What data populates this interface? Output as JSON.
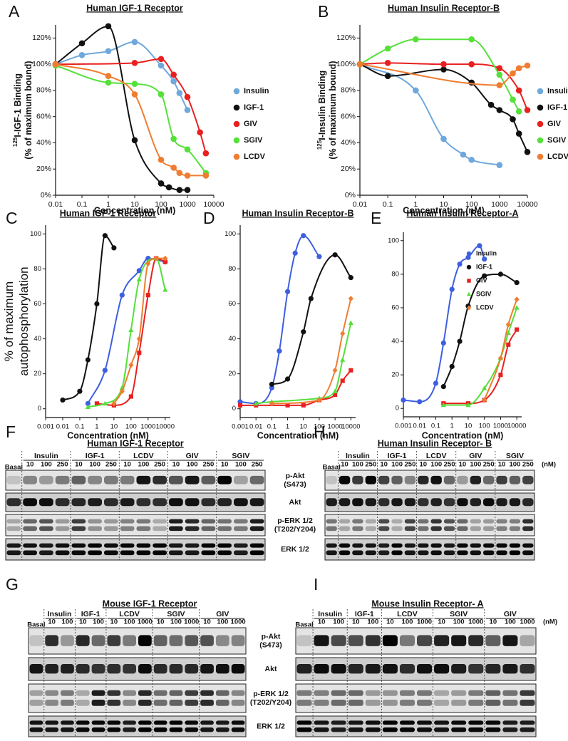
{
  "chart_data": [
    {
      "panel": "A",
      "type": "scatter",
      "fit": true,
      "title": "Human IGF-1 Receptor",
      "x_label": "Concentration (nM)",
      "y_label_sup": "125",
      "y_label": [
        "I-IGF-1 Binding",
        "(% of maximum bound)"
      ],
      "log_x": true,
      "xlim": [
        0.01,
        10000
      ],
      "xticks": [
        0.01,
        0.1,
        1,
        10,
        100,
        1000,
        10000
      ],
      "ylim": [
        0,
        130
      ],
      "yticks": [
        {
          "value": 0,
          "label": "0%"
        },
        {
          "value": 20,
          "label": "20%"
        },
        {
          "value": 40,
          "label": "40%"
        },
        {
          "value": 60,
          "label": "60%"
        },
        {
          "value": 80,
          "label": "80%"
        },
        {
          "value": 100,
          "label": "100%"
        },
        {
          "value": 120,
          "label": "120%"
        }
      ],
      "legend": "right",
      "series": [
        {
          "name": "Insulin",
          "color": "#6fa8dc",
          "marker": "circle",
          "x": [
            0.01,
            0.1,
            1,
            10,
            100,
            300,
            500,
            1000
          ],
          "values": [
            100,
            107,
            110,
            117,
            99,
            87,
            78,
            65
          ]
        },
        {
          "name": "IGF-1",
          "color": "#111111",
          "marker": "circle",
          "x": [
            0.01,
            0.1,
            1,
            10,
            100,
            200,
            500,
            1000
          ],
          "values": [
            100,
            116,
            129,
            42,
            9,
            6,
            4,
            4
          ]
        },
        {
          "name": "GIV",
          "color": "#e8201f",
          "marker": "circle",
          "x": [
            0.01,
            10,
            100,
            300,
            1000,
            3000,
            5000
          ],
          "values": [
            100,
            101,
            104,
            92,
            75,
            48,
            32
          ]
        },
        {
          "name": "SGIV",
          "color": "#55e03a",
          "marker": "circle",
          "x": [
            0.01,
            1,
            10,
            100,
            300,
            1000,
            5000
          ],
          "values": [
            99,
            86,
            85,
            77,
            43,
            35,
            17
          ]
        },
        {
          "name": "LCDV",
          "color": "#ef7d31",
          "marker": "circle",
          "x": [
            0.01,
            1,
            10,
            100,
            300,
            500,
            1000,
            5000
          ],
          "values": [
            100,
            91,
            77,
            27,
            21,
            17,
            15,
            15
          ]
        }
      ]
    },
    {
      "panel": "B",
      "type": "scatter",
      "fit": true,
      "title": "Human Insulin Receptor-B",
      "x_label": "Concentration (nM)",
      "y_label_sup": "125",
      "y_label": [
        "I-Insulin Binding",
        "(% of maximum bound)"
      ],
      "log_x": true,
      "xlim": [
        0.01,
        10000
      ],
      "xticks": [
        0.01,
        0.1,
        1,
        10,
        100,
        1000,
        10000
      ],
      "ylim": [
        0,
        130
      ],
      "yticks": [
        {
          "value": 0,
          "label": "0%"
        },
        {
          "value": 20,
          "label": "20%"
        },
        {
          "value": 40,
          "label": "40%"
        },
        {
          "value": 60,
          "label": "60%"
        },
        {
          "value": 80,
          "label": "80%"
        },
        {
          "value": 100,
          "label": "100%"
        },
        {
          "value": 120,
          "label": "120%"
        }
      ],
      "legend": "right",
      "series": [
        {
          "name": "Insulin",
          "color": "#6fa8dc",
          "marker": "circle",
          "x": [
            0.01,
            1,
            10,
            50,
            100,
            1000
          ],
          "values": [
            100,
            80,
            43,
            31,
            27,
            23
          ]
        },
        {
          "name": "IGF-1",
          "color": "#111111",
          "marker": "circle",
          "x": [
            0.01,
            0.1,
            10,
            100,
            500,
            1000,
            3000,
            5000,
            10000
          ],
          "values": [
            100,
            91,
            96,
            86,
            69,
            65,
            58,
            47,
            33
          ]
        },
        {
          "name": "GIV",
          "color": "#e8201f",
          "marker": "circle",
          "x": [
            0.01,
            0.1,
            10,
            100,
            1000,
            5000,
            10000
          ],
          "values": [
            100,
            101,
            100,
            100,
            97,
            80,
            65
          ]
        },
        {
          "name": "SGIV",
          "color": "#55e03a",
          "marker": "circle",
          "x": [
            0.01,
            0.1,
            1,
            100,
            1000,
            3000,
            5000
          ],
          "values": [
            100,
            112,
            119,
            119,
            92,
            73,
            64
          ]
        },
        {
          "name": "LCDV",
          "color": "#ef7d31",
          "marker": "circle",
          "x": [
            0.01,
            1000,
            3000,
            5000,
            10000
          ],
          "values": [
            100,
            84,
            93,
            97,
            99
          ]
        }
      ]
    },
    {
      "panel": "C",
      "type": "scatter",
      "fit": true,
      "title": "Human IGF-1 Receptor",
      "x_label": "Concentration (nM)",
      "y_label": [
        "% of maximum",
        "autophosphorylation"
      ],
      "log_x": true,
      "xlim": [
        0.001,
        20000
      ],
      "xticks": [
        0.001,
        0.01,
        0.1,
        1,
        10,
        100,
        1000,
        10000
      ],
      "ylim": [
        -5,
        105
      ],
      "yticks": [
        0,
        20,
        40,
        60,
        80,
        100
      ],
      "series": [
        {
          "name": "Insulin",
          "color": "#3d5fe0",
          "marker": "circle",
          "x": [
            0.3,
            3,
            30,
            300,
            1000,
            10000
          ],
          "values": [
            3,
            22,
            65,
            79,
            86,
            84
          ]
        },
        {
          "name": "IGF-1",
          "color": "#111111",
          "marker": "circle",
          "x": [
            0.01,
            0.1,
            0.3,
            1,
            3,
            10
          ],
          "values": [
            5,
            10,
            28,
            60,
            99,
            92
          ]
        },
        {
          "name": "GIV",
          "color": "#e8201f",
          "marker": "square",
          "x": [
            1,
            10,
            100,
            300,
            1000,
            3000,
            10000
          ],
          "values": [
            3,
            2,
            7,
            32,
            65,
            86,
            84
          ]
        },
        {
          "name": "SGIV",
          "color": "#55e03a",
          "marker": "triangle",
          "x": [
            0.3,
            3,
            30,
            100,
            300,
            3000,
            10000
          ],
          "values": [
            1,
            3,
            12,
            45,
            74,
            86,
            68
          ]
        },
        {
          "name": "LCDV",
          "color": "#ef7d31",
          "marker": "diamond",
          "x": [
            10,
            30,
            100,
            300,
            1000,
            3000,
            10000
          ],
          "values": [
            3,
            10,
            25,
            40,
            83,
            86,
            86
          ]
        }
      ]
    },
    {
      "panel": "D",
      "type": "scatter",
      "fit": true,
      "title": "Human Insulin Receptor-B",
      "x_label": "Concentration (nM)",
      "log_x": true,
      "xlim": [
        0.001,
        20000
      ],
      "xticks": [
        0.001,
        0.01,
        0.1,
        1,
        10,
        100,
        1000,
        10000
      ],
      "ylim": [
        -5,
        105
      ],
      "yticks": [
        0,
        20,
        40,
        60,
        80,
        100
      ],
      "series": [
        {
          "name": "Insulin",
          "color": "#3d5fe0",
          "marker": "circle",
          "x": [
            0.001,
            0.01,
            0.1,
            0.3,
            1,
            3,
            10,
            100
          ],
          "values": [
            4,
            3,
            12,
            33,
            67,
            89,
            99,
            87
          ]
        },
        {
          "name": "IGF-1",
          "color": "#111111",
          "marker": "circle",
          "x": [
            0.1,
            1,
            10,
            30,
            1000,
            10000
          ],
          "values": [
            14,
            17,
            44,
            63,
            88,
            75
          ]
        },
        {
          "name": "GIV",
          "color": "#e8201f",
          "marker": "square",
          "x": [
            0.001,
            0.01,
            1,
            10,
            100,
            1000,
            3000,
            10000
          ],
          "values": [
            2,
            2,
            2,
            2,
            5,
            8,
            16,
            22
          ]
        },
        {
          "name": "SGIV",
          "color": "#55e03a",
          "marker": "triangle",
          "x": [
            0.01,
            0.1,
            100,
            1000,
            3000,
            10000
          ],
          "values": [
            3,
            4,
            6,
            10,
            28,
            49
          ]
        },
        {
          "name": "LCDV",
          "color": "#ef7d31",
          "marker": "diamond",
          "x": [
            0.1,
            100,
            1000,
            3000,
            10000
          ],
          "values": [
            3,
            5,
            22,
            43,
            63
          ]
        }
      ]
    },
    {
      "panel": "E",
      "type": "scatter",
      "fit": true,
      "title": "Human Insulin Receptor-A",
      "x_label": "Concentration (nM)",
      "log_x": true,
      "xlim": [
        0.001,
        20000
      ],
      "xticks": [
        0.001,
        0.01,
        0.1,
        1,
        10,
        100,
        1000,
        10000
      ],
      "ylim": [
        -5,
        105
      ],
      "yticks": [
        0,
        20,
        40,
        60,
        80,
        100
      ],
      "legend": "upper right",
      "series": [
        {
          "name": "Insulin",
          "color": "#3d5fe0",
          "marker": "circle",
          "x": [
            0.001,
            0.01,
            0.1,
            0.3,
            1,
            3,
            10,
            50,
            100
          ],
          "values": [
            5,
            4,
            15,
            39,
            71,
            86,
            90,
            97,
            89
          ]
        },
        {
          "name": "IGF-1",
          "color": "#111111",
          "marker": "circle",
          "x": [
            0.3,
            1,
            3,
            10,
            100,
            1000,
            10000
          ],
          "values": [
            13,
            25,
            40,
            61,
            79,
            80,
            75
          ]
        },
        {
          "name": "GIV",
          "color": "#e8201f",
          "marker": "square",
          "x": [
            0.3,
            10,
            100,
            1000,
            3000,
            10000
          ],
          "values": [
            3,
            3,
            5,
            20,
            38,
            47
          ]
        },
        {
          "name": "SGIV",
          "color": "#55e03a",
          "marker": "triangle",
          "x": [
            0.3,
            10,
            100,
            1000,
            3000,
            10000
          ],
          "values": [
            2,
            2,
            12,
            30,
            45,
            60
          ]
        },
        {
          "name": "LCDV",
          "color": "#ef7d31",
          "marker": "diamond",
          "x": [
            100,
            1000,
            3000,
            10000
          ],
          "values": [
            5,
            30,
            50,
            65
          ]
        }
      ]
    }
  ],
  "blots": [
    {
      "panel": "F",
      "title": "Human IGF-1 Receptor",
      "basal": "Basal",
      "groups": [
        {
          "name": "Insulin",
          "doses": [
            10,
            100,
            250
          ]
        },
        {
          "name": "IGF-1",
          "doses": [
            10,
            100,
            250
          ]
        },
        {
          "name": "LCDV",
          "doses": [
            10,
            100,
            250
          ]
        },
        {
          "name": "GIV",
          "doses": [
            10,
            100,
            250
          ]
        },
        {
          "name": "SGIV",
          "doses": [
            10,
            100,
            250
          ]
        }
      ]
    },
    {
      "panel": "G",
      "title": "Mouse IGF-1 Receptor",
      "basal": "Basal",
      "groups": [
        {
          "name": "Insulin",
          "doses": [
            10,
            100
          ]
        },
        {
          "name": "IGF-1",
          "doses": [
            10,
            100
          ]
        },
        {
          "name": "LCDV",
          "doses": [
            10,
            100,
            1000
          ]
        },
        {
          "name": "SGIV",
          "doses": [
            10,
            100,
            1000
          ]
        },
        {
          "name": "GIV",
          "doses": [
            10,
            100,
            1000
          ]
        }
      ]
    },
    {
      "panel": "H",
      "title": "Human Insulin Receptor- B",
      "basal": "Basal",
      "unit": "(nM)",
      "groups": [
        {
          "name": "Insulin",
          "doses": [
            10,
            100,
            250
          ]
        },
        {
          "name": "IGF-1",
          "doses": [
            10,
            100,
            250
          ]
        },
        {
          "name": "LCDV",
          "doses": [
            10,
            100,
            250
          ]
        },
        {
          "name": "GIV",
          "doses": [
            10,
            100,
            250
          ]
        },
        {
          "name": "SGIV",
          "doses": [
            10,
            100,
            250
          ]
        }
      ],
      "row_labels": [
        [
          "p-Akt",
          "(S473)"
        ],
        [
          "Akt"
        ],
        [
          "p-ERK 1/2",
          "(T202/Y204)"
        ],
        [
          "ERK 1/2"
        ]
      ]
    },
    {
      "panel": "I",
      "title": "Mouse Insulin Receptor- A",
      "basal": "Basal",
      "unit": "(nM)",
      "groups": [
        {
          "name": "Insulin",
          "doses": [
            10,
            100
          ]
        },
        {
          "name": "IGF-1",
          "doses": [
            10,
            100
          ]
        },
        {
          "name": "LCDV",
          "doses": [
            10,
            100,
            1000
          ]
        },
        {
          "name": "SGIV",
          "doses": [
            10,
            100,
            1000
          ]
        },
        {
          "name": "GIV",
          "doses": [
            10,
            100,
            1000
          ]
        }
      ],
      "row_labels": [
        [
          "p-Akt",
          "(S473)"
        ],
        [
          "Akt"
        ],
        [
          "p-ERK 1/2",
          "(T202/Y204)"
        ],
        [
          "ERK 1/2"
        ]
      ]
    }
  ]
}
